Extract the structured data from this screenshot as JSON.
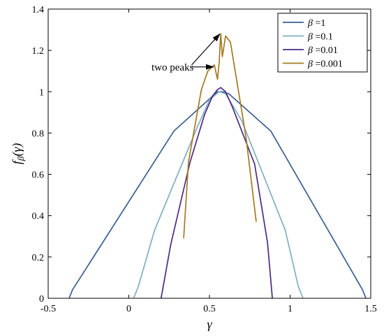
{
  "chart_data": {
    "type": "line",
    "xlabel": "γ",
    "ylabel": "f_β(γ)",
    "ylabel_parts": {
      "f": "f",
      "sub": "β",
      "arg": "(γ)"
    },
    "xlim": [
      -0.5,
      1.5
    ],
    "ylim": [
      0,
      1.4
    ],
    "xticks": [
      -0.5,
      0,
      0.5,
      1,
      1.5
    ],
    "xtick_labels": [
      "-0.5",
      "0",
      "0.5",
      "1",
      "1.5"
    ],
    "yticks": [
      0,
      0.2,
      0.4,
      0.6,
      0.8,
      1,
      1.2,
      1.4
    ],
    "ytick_labels": [
      "0",
      "0.2",
      "0.4",
      "0.6",
      "0.8",
      "1",
      "1.2",
      "1.4"
    ],
    "grid": false,
    "legend_position": "top-right",
    "series": [
      {
        "name": "β =1",
        "legend_var": "β",
        "legend_value": " =1",
        "color": "#3a5f8f",
        "x": [
          -0.37,
          -0.35,
          0.28,
          0.55,
          0.58,
          0.62,
          0.88,
          1.45,
          1.47
        ],
        "y": [
          0.0,
          0.04,
          0.81,
          1.0,
          1.0,
          0.99,
          0.81,
          0.04,
          0.0
        ]
      },
      {
        "name": "β =0.1",
        "legend_var": "β",
        "legend_value": " =0.1",
        "color": "#7fafc0",
        "x": [
          0.03,
          0.06,
          0.16,
          0.42,
          0.5,
          0.56,
          0.6,
          0.7,
          0.97,
          1.05,
          1.08
        ],
        "y": [
          0.0,
          0.06,
          0.33,
          0.82,
          0.96,
          1.0,
          0.99,
          0.86,
          0.33,
          0.06,
          0.0
        ]
      },
      {
        "name": "β =0.01",
        "legend_var": "β",
        "legend_value": " =0.01",
        "color": "#4b2a86",
        "x": [
          0.2,
          0.26,
          0.38,
          0.47,
          0.52,
          0.55,
          0.57,
          0.6,
          0.64,
          0.78,
          0.86,
          0.89
        ],
        "y": [
          0.0,
          0.26,
          0.66,
          0.89,
          0.98,
          1.01,
          1.02,
          1.0,
          0.93,
          0.65,
          0.27,
          0.0
        ]
      },
      {
        "name": "β =0.001",
        "legend_var": "β",
        "legend_value": " =0.001",
        "color": "#a47a22",
        "x": [
          0.34,
          0.37,
          0.45,
          0.49,
          0.53,
          0.55,
          0.56,
          0.57,
          0.58,
          0.6,
          0.63,
          0.71,
          0.73,
          0.79
        ],
        "y": [
          0.29,
          0.66,
          1.01,
          1.1,
          1.13,
          1.06,
          1.14,
          1.28,
          1.17,
          1.27,
          1.24,
          0.86,
          0.76,
          0.37
        ]
      }
    ],
    "annotations": [
      {
        "text": "two peaks",
        "text_x": 0.35,
        "text_y": 1.12,
        "arrows": [
          {
            "from": [
              0.39,
              1.13
            ],
            "to": [
              0.565,
              1.28
            ]
          },
          {
            "from": [
              0.39,
              1.12
            ],
            "to": [
              0.525,
              1.12
            ]
          }
        ]
      }
    ]
  }
}
